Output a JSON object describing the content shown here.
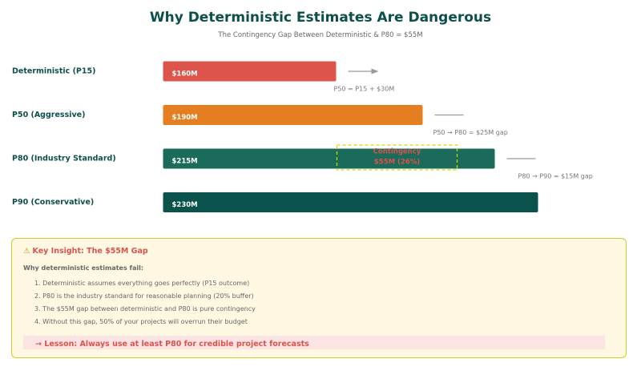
{
  "header": {
    "title": "Why Deterministic Estimates Are Dangerous",
    "subtitle": "The Contingency Gap Between Deterministic & P80 = $55M"
  },
  "chart_data": {
    "type": "bar",
    "orientation": "horizontal",
    "title": "Why Deterministic Estimates Are Dangerous",
    "subtitle": "The Contingency Gap Between Deterministic & P80 = $55M",
    "categories": [
      "Deterministic (P15)",
      "P50 (Aggressive)",
      "P80 (Industry Standard)",
      "P90 (Conservative)"
    ],
    "values": [
      160,
      190,
      215,
      230
    ],
    "value_labels": [
      "$160M",
      "$190M",
      "$215M",
      "$230M"
    ],
    "colors": [
      "#dd544d",
      "#e57e20",
      "#1a6b5a",
      "#0a524c"
    ],
    "label_color": "#0d4f4b",
    "xlim": [
      100,
      250
    ],
    "grid": false,
    "annotations": [
      {
        "text": "P50 = P15 + $30M",
        "after_category": 0
      },
      {
        "text": "P50 → P80 = $25M gap",
        "after_category": 1
      },
      {
        "text": "P80 → P90 = $15M gap",
        "after_category": 2
      }
    ],
    "contingency": {
      "line1": "Contingency",
      "line2": "$55M (26%)",
      "from": 160,
      "to": 215
    }
  },
  "insight": {
    "icon": "warning-icon",
    "icon_glyph": "⚠",
    "title": "Key Insight: The $55M Gap",
    "heading": "Why deterministic estimates fail:",
    "points": [
      "1. Deterministic assumes everything goes perfectly (P15 outcome)",
      "2. P80 is the industry standard for reasonable planning (20% buffer)",
      "3. The $55M gap between deterministic and P80 is pure contingency",
      "4. Without this gap, 50% of your projects will overrun their budget"
    ],
    "lesson": "→ Lesson: Always use at least P80 for credible project forecasts"
  }
}
